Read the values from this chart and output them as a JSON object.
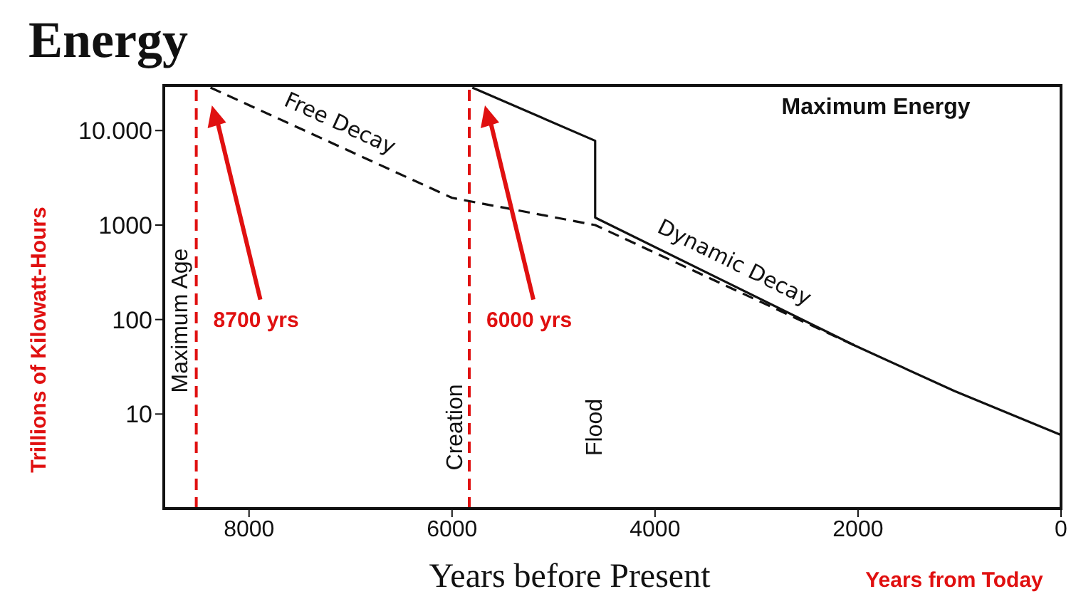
{
  "chart_data": {
    "type": "line",
    "title": "Energy",
    "xlabel": "Years before Present",
    "ylabel": "Trillions of Kilowatt-Hours",
    "log": "y",
    "xlim": [
      8840,
      0
    ],
    "xticks": [
      8000,
      6000,
      4000,
      2000,
      0
    ],
    "ylim": [
      1,
      30000
    ],
    "yticks": [
      10,
      100,
      1000,
      {
        "value": 10000,
        "label": "10.000"
      }
    ],
    "marker": "none",
    "series": [
      {
        "name": "Free Decay",
        "color": "#111111",
        "line_style": "dashed",
        "x": [
          8380,
          6000,
          4590,
          2030
        ],
        "values": [
          28500,
          1940,
          1000,
          53
        ]
      },
      {
        "name": "Dynamic Decay",
        "color": "#111111",
        "line_style": "solid",
        "x": [
          5800,
          4590,
          4590,
          2030,
          1050,
          0
        ],
        "values": [
          28500,
          7800,
          1200,
          53,
          17.5,
          6
        ]
      }
    ],
    "ref_lines": [
      {
        "axis": "x",
        "value": 8520,
        "label": "8700 yrs",
        "color": "#e01010",
        "line_style": "dashed"
      },
      {
        "axis": "x",
        "value": 5830,
        "label": "6000 yrs",
        "color": "#e01010",
        "line_style": "dashed"
      }
    ],
    "annotations": [
      "Maximum Age",
      "Creation",
      "Flood",
      "Maximum Energy",
      "Years from Today"
    ]
  }
}
